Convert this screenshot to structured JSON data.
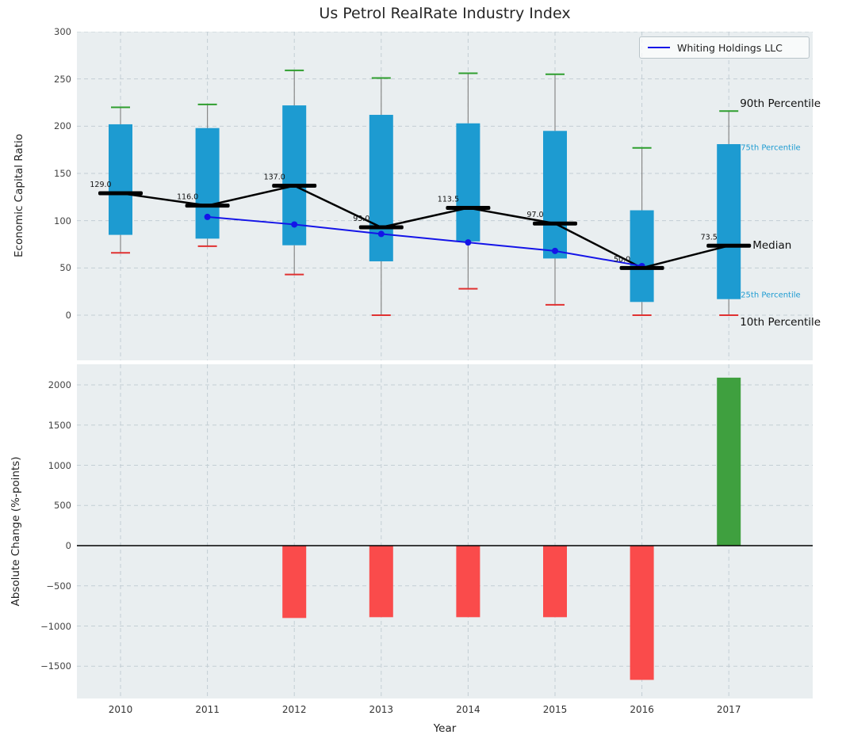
{
  "figure": {
    "title": "Us Petrol RealRate Industry Index"
  },
  "colors": {
    "panel_bg": "#e9eef0",
    "grid": "#c3ced4",
    "box_fill": "#1d9bd1",
    "whisker": "#888888",
    "cap_top": "#2e9e2e",
    "cap_bottom": "#e03131",
    "median": "#000000",
    "company_line": "#1414e8",
    "bar_negative": "#fa4b4b",
    "bar_positive": "#3fa03f",
    "annotation_teal": "#1d9bd1",
    "zero_line": "#000000"
  },
  "legend": {
    "label": "Whiting Holdings LLC"
  },
  "chart_data": [
    {
      "type": "box",
      "title": "Us Petrol RealRate Industry Index",
      "ylabel": "Economic Capital Ratio",
      "ylim": [
        -48,
        300
      ],
      "yticks": [
        0,
        50,
        100,
        150,
        200,
        250,
        300
      ],
      "grid": true,
      "legend_position": "upper right",
      "categories": [
        "2010",
        "2011",
        "2012",
        "2013",
        "2014",
        "2015",
        "2016",
        "2017"
      ],
      "boxes": [
        {
          "year": "2010",
          "p10": 66,
          "p25": 85,
          "median": 129.0,
          "p75": 202,
          "p90": 220
        },
        {
          "year": "2011",
          "p10": 73,
          "p25": 81,
          "median": 116.0,
          "p75": 198,
          "p90": 223
        },
        {
          "year": "2012",
          "p10": 43,
          "p25": 74,
          "median": 137.0,
          "p75": 222,
          "p90": 259
        },
        {
          "year": "2013",
          "p10": 0,
          "p25": 57,
          "median": 93.0,
          "p75": 212,
          "p90": 251
        },
        {
          "year": "2014",
          "p10": 28,
          "p25": 78,
          "median": 113.5,
          "p75": 203,
          "p90": 256
        },
        {
          "year": "2015",
          "p10": 11,
          "p25": 60,
          "median": 97.0,
          "p75": 195,
          "p90": 255
        },
        {
          "year": "2016",
          "p10": 0,
          "p25": 14,
          "median": 50.0,
          "p75": 111,
          "p90": 177
        },
        {
          "year": "2017",
          "p10": 0,
          "p25": 17,
          "median": 73.5,
          "p75": 181,
          "p90": 216
        }
      ],
      "median_labels": [
        "129.0",
        "116.0",
        "137.0",
        "93.0",
        "113.5",
        "97.0",
        "50.0",
        "73.5"
      ],
      "series": [
        {
          "name": "Whiting Holdings LLC",
          "x": [
            "2011",
            "2012",
            "2013",
            "2014",
            "2015",
            "2016"
          ],
          "values": [
            104,
            96,
            86,
            77,
            68,
            52
          ]
        }
      ],
      "annotations": [
        {
          "text": "90th Percentile",
          "anchor": "p90",
          "size": "large",
          "color": "#111111"
        },
        {
          "text": "75th Percentile",
          "anchor": "p75",
          "size": "small",
          "color": "#1d9bd1"
        },
        {
          "text": "Median",
          "anchor": "median",
          "size": "large",
          "color": "#111111"
        },
        {
          "text": "25th Percentile",
          "anchor": "p25",
          "size": "small",
          "color": "#1d9bd1"
        },
        {
          "text": "10th Percentile",
          "anchor": "p10",
          "size": "large",
          "color": "#111111"
        }
      ]
    },
    {
      "type": "bar",
      "ylabel": "Absolute Change (%-points)",
      "xlabel": "Year",
      "ylim": [
        -1900,
        2260
      ],
      "yticks": [
        -1500,
        -1000,
        -500,
        0,
        500,
        1000,
        1500,
        2000
      ],
      "grid": true,
      "categories": [
        "2010",
        "2011",
        "2012",
        "2013",
        "2014",
        "2015",
        "2016",
        "2017"
      ],
      "values": [
        0,
        0,
        -900,
        -890,
        -890,
        -890,
        -1670,
        2090
      ]
    }
  ]
}
